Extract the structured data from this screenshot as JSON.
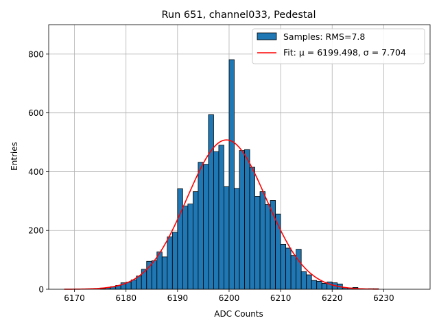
{
  "chart_data": {
    "type": "bar",
    "title": "Run 651, channel033, Pedestal",
    "xlabel": "ADC Counts",
    "ylabel": "Entries",
    "xlim": [
      6165,
      6239
    ],
    "ylim": [
      0,
      900
    ],
    "xticks": [
      6170,
      6180,
      6190,
      6200,
      6210,
      6220,
      6230
    ],
    "yticks": [
      0,
      200,
      400,
      600,
      800
    ],
    "grid": true,
    "legend_position": "top-right",
    "series": [
      {
        "name": "Samples: RMS=7.8",
        "kind": "histogram",
        "color": "#1f77b4",
        "edgecolor": "#000000",
        "bin_width": 1,
        "bin_lefts": [
          6175,
          6176,
          6177,
          6178,
          6179,
          6180,
          6181,
          6182,
          6183,
          6184,
          6185,
          6186,
          6187,
          6188,
          6189,
          6190,
          6191,
          6192,
          6193,
          6194,
          6195,
          6196,
          6197,
          6198,
          6199,
          6200,
          6201,
          6202,
          6203,
          6204,
          6205,
          6206,
          6207,
          6208,
          6209,
          6210,
          6211,
          6212,
          6213,
          6214,
          6215,
          6216,
          6217,
          6218,
          6219,
          6220,
          6221,
          6222,
          6223,
          6224,
          6225,
          6226,
          6227,
          6228
        ],
        "counts": [
          2,
          5,
          9,
          13,
          22,
          24,
          32,
          45,
          68,
          95,
          97,
          127,
          110,
          178,
          194,
          342,
          283,
          290,
          332,
          432,
          425,
          594,
          468,
          490,
          349,
          781,
          343,
          472,
          475,
          415,
          316,
          332,
          288,
          302,
          256,
          153,
          140,
          115,
          136,
          60,
          49,
          30,
          27,
          20,
          25,
          22,
          18,
          5,
          4,
          6,
          2,
          1,
          2,
          2
        ]
      },
      {
        "name": "Fit: μ = 6199.498, σ = 7.704",
        "kind": "gaussian_fit",
        "color": "#ff0000",
        "mu": 6199.498,
        "sigma": 7.704,
        "amplitude": 508,
        "x_range": [
          6168,
          6229
        ]
      }
    ]
  }
}
